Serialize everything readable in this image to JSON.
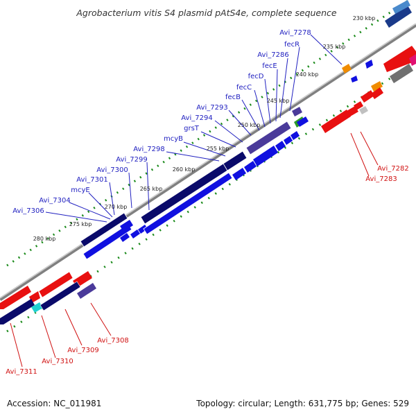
{
  "title": "Agrobacterium vitis S4 plasmid pAtS4e, complete sequence",
  "footer": {
    "accession": "Accession: NC_011981",
    "summary": "Topology: circular; Length: 631,775 bp; Genes: 529"
  },
  "scale_labels": [
    "230 kbp",
    "235 kbp",
    "240 kbp",
    "245 kbp",
    "250 kbp",
    "255 kbp",
    "260 kbp",
    "265 kbp",
    "270 kbp",
    "275 kbp",
    "280 kbp"
  ],
  "forward_gene_labels": [
    "Avi_7278",
    "fecR",
    "Avi_7286",
    "fecE",
    "fecD",
    "fecC",
    "fecB",
    "Avi_7293",
    "Avi_7294",
    "grsT",
    "mcyB",
    "Avi_7298",
    "Avi_7299",
    "Avi_7300",
    "Avi_7301",
    "mcyE",
    "Avi_7304",
    "Avi_7306"
  ],
  "reverse_gene_labels": [
    "Avi_7282",
    "Avi_7283",
    "Avi_7308",
    "Avi_7309",
    "Avi_7310",
    "Avi_7311"
  ],
  "colors": {
    "forward_label": "#2020c0",
    "reverse_label": "#d01010",
    "forward_gene": "#1010e0",
    "reverse_gene": "#e81010",
    "operon_dark": "#0a0a6a",
    "tick": "#1a8a1a"
  }
}
